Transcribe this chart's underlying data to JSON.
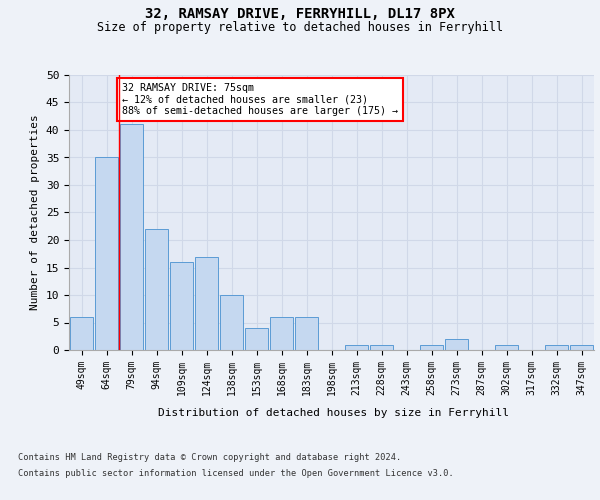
{
  "title1": "32, RAMSAY DRIVE, FERRYHILL, DL17 8PX",
  "title2": "Size of property relative to detached houses in Ferryhill",
  "xlabel": "Distribution of detached houses by size in Ferryhill",
  "ylabel": "Number of detached properties",
  "categories": [
    "49sqm",
    "64sqm",
    "79sqm",
    "94sqm",
    "109sqm",
    "124sqm",
    "138sqm",
    "153sqm",
    "168sqm",
    "183sqm",
    "198sqm",
    "213sqm",
    "228sqm",
    "243sqm",
    "258sqm",
    "273sqm",
    "287sqm",
    "302sqm",
    "317sqm",
    "332sqm",
    "347sqm"
  ],
  "values": [
    6,
    35,
    41,
    22,
    16,
    17,
    10,
    4,
    6,
    6,
    0,
    1,
    1,
    0,
    1,
    2,
    0,
    1,
    0,
    1,
    1
  ],
  "bar_color": "#c5d8f0",
  "bar_edge_color": "#5b9bd5",
  "grid_color": "#d0d8e8",
  "annotation_text": "32 RAMSAY DRIVE: 75sqm\n← 12% of detached houses are smaller (23)\n88% of semi-detached houses are larger (175) →",
  "annotation_box_color": "white",
  "annotation_edge_color": "red",
  "footer1": "Contains HM Land Registry data © Crown copyright and database right 2024.",
  "footer2": "Contains public sector information licensed under the Open Government Licence v3.0.",
  "ylim": [
    0,
    50
  ],
  "yticks": [
    0,
    5,
    10,
    15,
    20,
    25,
    30,
    35,
    40,
    45,
    50
  ],
  "bg_color": "#eef2f8",
  "plot_bg_color": "#e4eaf5"
}
